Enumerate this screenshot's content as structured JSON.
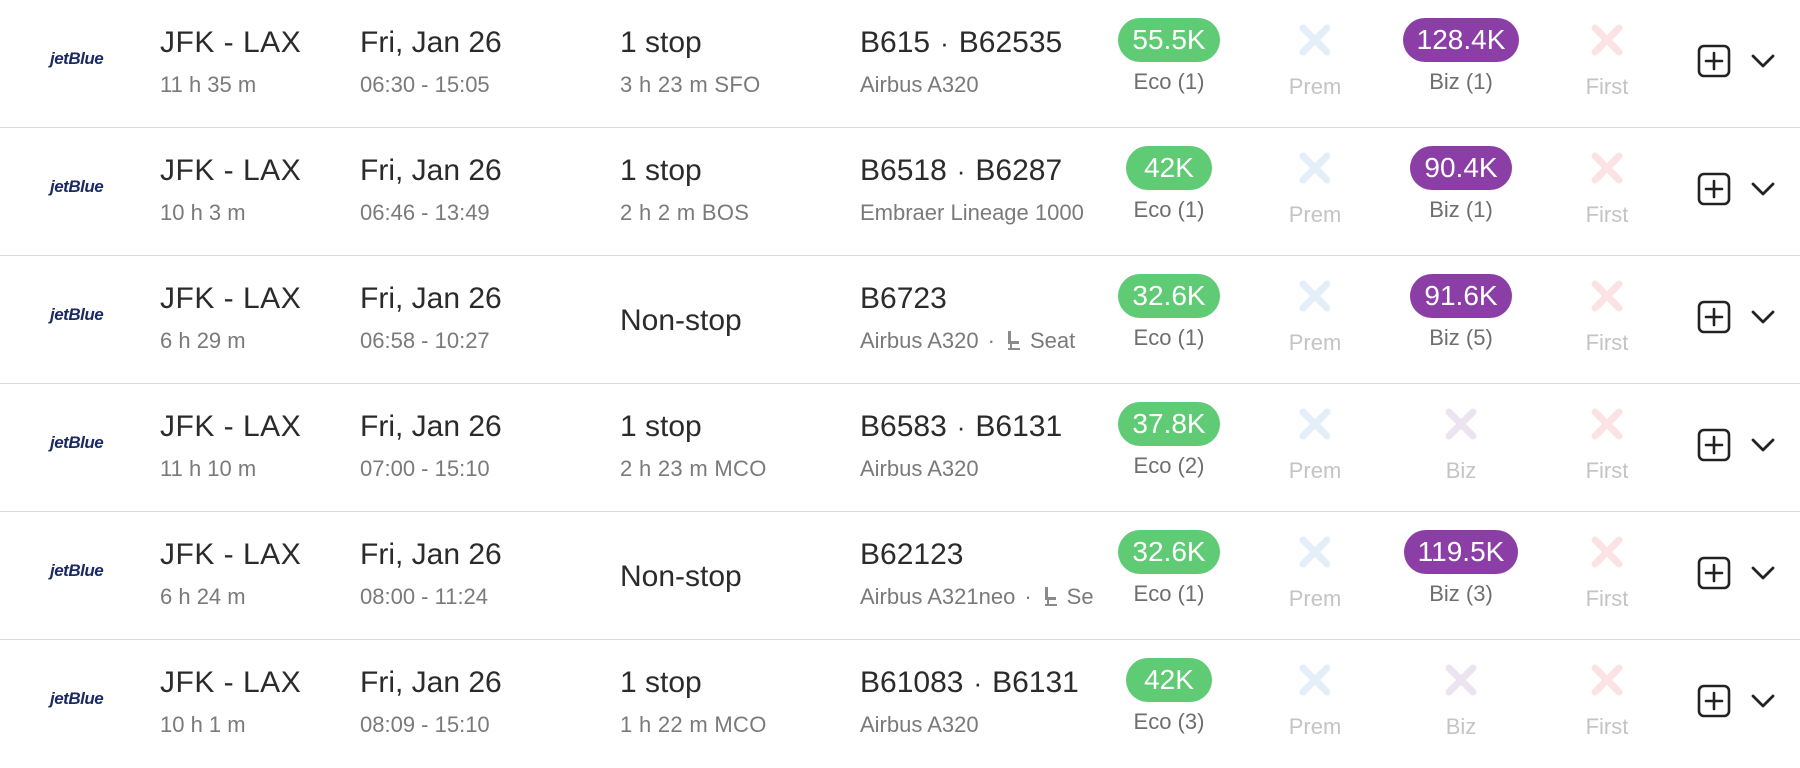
{
  "colors": {
    "economy_pill": "#5fcb74",
    "business_pill": "#8b3fa6",
    "prem_unavailable": "#e4eef8",
    "biz_unavailable": "#ece3f1",
    "first_unavailable": "#fbe3e3"
  },
  "rows": [
    {
      "airline_logo": "jetBlue",
      "route": "JFK - LAX",
      "duration": "11 h 35 m",
      "date": "Fri, Jan 26",
      "times": "06:30 - 15:05",
      "stops": "1 stop",
      "layover": "3 h 23 m  SFO",
      "flight_a": "B615",
      "flight_sep": "·",
      "flight_b": "B62535",
      "aircraft": "Airbus A320",
      "seat_sep": "",
      "seat_text": "",
      "eco_price": "55.5K",
      "eco_label": "Eco (1)",
      "prem_label": "Prem",
      "biz_price": "128.4K",
      "biz_label": "Biz (1)",
      "first_label": "First"
    },
    {
      "airline_logo": "jetBlue",
      "route": "JFK - LAX",
      "duration": "10 h 3 m",
      "date": "Fri, Jan 26",
      "times": "06:46 - 13:49",
      "stops": "1 stop",
      "layover": "2 h 2 m  BOS",
      "flight_a": "B6518",
      "flight_sep": "·",
      "flight_b": "B6287",
      "aircraft": "Embraer Lineage 1000",
      "seat_sep": "",
      "seat_text": "",
      "eco_price": "42K",
      "eco_label": "Eco (1)",
      "prem_label": "Prem",
      "biz_price": "90.4K",
      "biz_label": "Biz (1)",
      "first_label": "First"
    },
    {
      "airline_logo": "jetBlue",
      "route": "JFK - LAX",
      "duration": "6 h 29 m",
      "date": "Fri, Jan 26",
      "times": "06:58 - 10:27",
      "stops": "Non-stop",
      "layover": "",
      "flight_a": "B6723",
      "flight_sep": "",
      "flight_b": "",
      "aircraft": "Airbus A320",
      "seat_sep": "·",
      "seat_text": "Seat",
      "eco_price": "32.6K",
      "eco_label": "Eco (1)",
      "prem_label": "Prem",
      "biz_price": "91.6K",
      "biz_label": "Biz (5)",
      "first_label": "First"
    },
    {
      "airline_logo": "jetBlue",
      "route": "JFK - LAX",
      "duration": "11 h 10 m",
      "date": "Fri, Jan 26",
      "times": "07:00 - 15:10",
      "stops": "1 stop",
      "layover": "2 h 23 m  MCO",
      "flight_a": "B6583",
      "flight_sep": "·",
      "flight_b": "B6131",
      "aircraft": "Airbus A320",
      "seat_sep": "",
      "seat_text": "",
      "eco_price": "37.8K",
      "eco_label": "Eco (2)",
      "prem_label": "Prem",
      "biz_price": "",
      "biz_label": "Biz",
      "first_label": "First"
    },
    {
      "airline_logo": "jetBlue",
      "route": "JFK - LAX",
      "duration": "6 h 24 m",
      "date": "Fri, Jan 26",
      "times": "08:00 - 11:24",
      "stops": "Non-stop",
      "layover": "",
      "flight_a": "B62123",
      "flight_sep": "",
      "flight_b": "",
      "aircraft": "Airbus A321neo",
      "seat_sep": "·",
      "seat_text": "Se",
      "eco_price": "32.6K",
      "eco_label": "Eco (1)",
      "prem_label": "Prem",
      "biz_price": "119.5K",
      "biz_label": "Biz (3)",
      "first_label": "First"
    },
    {
      "airline_logo": "jetBlue",
      "route": "JFK - LAX",
      "duration": "10 h 1 m",
      "date": "Fri, Jan 26",
      "times": "08:09 - 15:10",
      "stops": "1 stop",
      "layover": "1 h 22 m  MCO",
      "flight_a": "B61083",
      "flight_sep": "·",
      "flight_b": "B6131",
      "aircraft": "Airbus A320",
      "seat_sep": "",
      "seat_text": "",
      "eco_price": "42K",
      "eco_label": "Eco (3)",
      "prem_label": "Prem",
      "biz_price": "",
      "biz_label": "Biz",
      "first_label": "First"
    }
  ]
}
